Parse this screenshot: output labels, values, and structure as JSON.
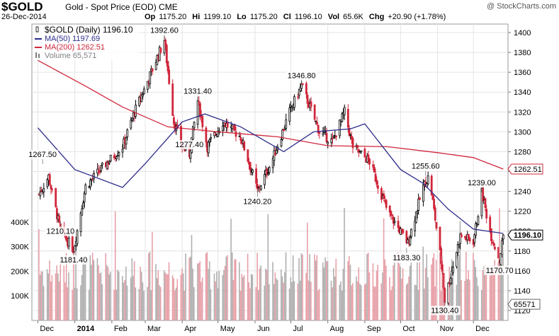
{
  "header": {
    "symbol": "$GOLD",
    "name": "Gold - Spot Price (EOD)",
    "exchange": "CME",
    "date": "26-Dec-2014",
    "credit": "@ StockCharts.com",
    "quote": [
      {
        "label": "Op",
        "value": "1175.20"
      },
      {
        "label": "Hi",
        "value": "1199.10"
      },
      {
        "label": "Lo",
        "value": "1175.20"
      },
      {
        "label": "Cl",
        "value": "1196.10"
      },
      {
        "label": "Vol",
        "value": "65.6K"
      },
      {
        "label": "Chg",
        "value": "+20.90 (+1.78%)"
      }
    ]
  },
  "legend": [
    {
      "text": "$GOLD (Daily) 1196.10",
      "color": "#000000",
      "icon": "candlestick-icon"
    },
    {
      "text": "MA(50) 1197.69",
      "color": "#2c2c8c",
      "icon": "line-icon"
    },
    {
      "text": "MA(200) 1262.51",
      "color": "#d0263a",
      "icon": "line-icon"
    },
    {
      "text": "Volume 65,571",
      "color": "#808080",
      "icon": "bar-icon"
    }
  ],
  "chart_data": {
    "type": "candlestick",
    "title": "$GOLD (Daily)",
    "x_labels": [
      "Dec",
      "2014",
      "Feb",
      "Mar",
      "Apr",
      "May",
      "Jun",
      "Jul",
      "Aug",
      "Sep",
      "Oct",
      "Nov",
      "Dec"
    ],
    "y_ticks": [
      1120,
      1140,
      1160,
      1180,
      1200,
      1220,
      1240,
      1260,
      1280,
      1300,
      1320,
      1340,
      1360,
      1380,
      1400
    ],
    "ylim": [
      1115,
      1410
    ],
    "volume_ticks": [
      "100K",
      "200K",
      "300K",
      "400K"
    ],
    "volume_values": [
      100000,
      200000,
      300000,
      400000
    ],
    "grid": true,
    "legend_position": "top-left",
    "colors": {
      "up": "#000000",
      "down": "#d0263a",
      "ma50": "#2c2c8c",
      "ma200": "#d0263a",
      "volume_up": "#b0b0b0",
      "volume_down": "#e8a0a8"
    },
    "price_path": [
      {
        "date": "2013-12-01",
        "value": 1235
      },
      {
        "date": "2013-12-10",
        "value": 1255
      },
      {
        "date": "2013-12-20",
        "value": 1200
      },
      {
        "date": "2013-12-31",
        "value": 1181.4
      },
      {
        "date": "2014-01-10",
        "value": 1245
      },
      {
        "date": "2014-01-25",
        "value": 1265
      },
      {
        "date": "2014-02-10",
        "value": 1285
      },
      {
        "date": "2014-02-20",
        "value": 1320
      },
      {
        "date": "2014-03-01",
        "value": 1345
      },
      {
        "date": "2014-03-17",
        "value": 1392.6
      },
      {
        "date": "2014-03-25",
        "value": 1310
      },
      {
        "date": "2014-04-01",
        "value": 1285
      },
      {
        "date": "2014-04-07",
        "value": 1277.4
      },
      {
        "date": "2014-04-14",
        "value": 1331.4
      },
      {
        "date": "2014-04-22",
        "value": 1285
      },
      {
        "date": "2014-05-05",
        "value": 1310
      },
      {
        "date": "2014-05-20",
        "value": 1295
      },
      {
        "date": "2014-06-01",
        "value": 1250
      },
      {
        "date": "2014-06-03",
        "value": 1240.2
      },
      {
        "date": "2014-06-15",
        "value": 1270
      },
      {
        "date": "2014-06-30",
        "value": 1320
      },
      {
        "date": "2014-07-10",
        "value": 1346.8
      },
      {
        "date": "2014-07-25",
        "value": 1300
      },
      {
        "date": "2014-08-05",
        "value": 1290
      },
      {
        "date": "2014-08-15",
        "value": 1320
      },
      {
        "date": "2014-08-22",
        "value": 1285
      },
      {
        "date": "2014-09-05",
        "value": 1270
      },
      {
        "date": "2014-09-20",
        "value": 1220
      },
      {
        "date": "2014-10-06",
        "value": 1190
      },
      {
        "date": "2014-10-06",
        "value": 1183.3
      },
      {
        "date": "2014-10-20",
        "value": 1245
      },
      {
        "date": "2014-10-25",
        "value": 1255.6
      },
      {
        "date": "2014-11-05",
        "value": 1160
      },
      {
        "date": "2014-11-07",
        "value": 1130.4
      },
      {
        "date": "2014-11-20",
        "value": 1195
      },
      {
        "date": "2014-12-01",
        "value": 1190
      },
      {
        "date": "2014-12-08",
        "value": 1239
      },
      {
        "date": "2014-12-16",
        "value": 1195
      },
      {
        "date": "2014-12-23",
        "value": 1170.7
      },
      {
        "date": "2014-12-26",
        "value": 1196.1
      }
    ],
    "annotations": [
      {
        "label": "1267.50",
        "date": "2013-12-05",
        "value": 1267.5
      },
      {
        "label": "1210.10",
        "date": "2013-12-20",
        "value": 1210.1
      },
      {
        "label": "1181.40",
        "date": "2013-12-31",
        "value": 1181.4
      },
      {
        "label": "1392.60",
        "date": "2014-03-17",
        "value": 1392.6
      },
      {
        "label": "1331.40",
        "date": "2014-04-14",
        "value": 1331.4
      },
      {
        "label": "1277.40",
        "date": "2014-04-07",
        "value": 1277.4
      },
      {
        "label": "1240.20",
        "date": "2014-06-03",
        "value": 1240.2
      },
      {
        "label": "1346.80",
        "date": "2014-07-10",
        "value": 1346.8
      },
      {
        "label": "1255.60",
        "date": "2014-10-22",
        "value": 1255.6
      },
      {
        "label": "1183.30",
        "date": "2014-10-06",
        "value": 1183.3
      },
      {
        "label": "1130.40",
        "date": "2014-11-07",
        "value": 1130.4
      },
      {
        "label": "1239.00",
        "date": "2014-12-08",
        "value": 1239.0
      },
      {
        "label": "1170.70",
        "date": "2014-12-23",
        "value": 1170.7
      }
    ],
    "ma50": [
      {
        "date": "2013-12-01",
        "value": 1304
      },
      {
        "date": "2014-01-01",
        "value": 1262
      },
      {
        "date": "2014-02-10",
        "value": 1244
      },
      {
        "date": "2014-03-01",
        "value": 1268
      },
      {
        "date": "2014-04-01",
        "value": 1310
      },
      {
        "date": "2014-04-20",
        "value": 1318
      },
      {
        "date": "2014-05-20",
        "value": 1305
      },
      {
        "date": "2014-06-25",
        "value": 1280
      },
      {
        "date": "2014-07-20",
        "value": 1300
      },
      {
        "date": "2014-08-20",
        "value": 1303
      },
      {
        "date": "2014-09-01",
        "value": 1308
      },
      {
        "date": "2014-10-01",
        "value": 1262
      },
      {
        "date": "2014-10-20",
        "value": 1248
      },
      {
        "date": "2014-11-10",
        "value": 1222
      },
      {
        "date": "2014-12-01",
        "value": 1202
      },
      {
        "date": "2014-12-26",
        "value": 1197.69
      }
    ],
    "ma200": [
      {
        "date": "2013-12-01",
        "value": 1372
      },
      {
        "date": "2014-01-10",
        "value": 1346
      },
      {
        "date": "2014-02-10",
        "value": 1325
      },
      {
        "date": "2014-03-20",
        "value": 1305
      },
      {
        "date": "2014-05-01",
        "value": 1300
      },
      {
        "date": "2014-06-20",
        "value": 1295
      },
      {
        "date": "2014-08-01",
        "value": 1286
      },
      {
        "date": "2014-09-20",
        "value": 1285
      },
      {
        "date": "2014-11-01",
        "value": 1279
      },
      {
        "date": "2014-12-01",
        "value": 1274
      },
      {
        "date": "2014-12-26",
        "value": 1262.51
      }
    ],
    "last_price_label": "1196.10",
    "ma200_label": "1262.51",
    "volume_label": "65571"
  }
}
